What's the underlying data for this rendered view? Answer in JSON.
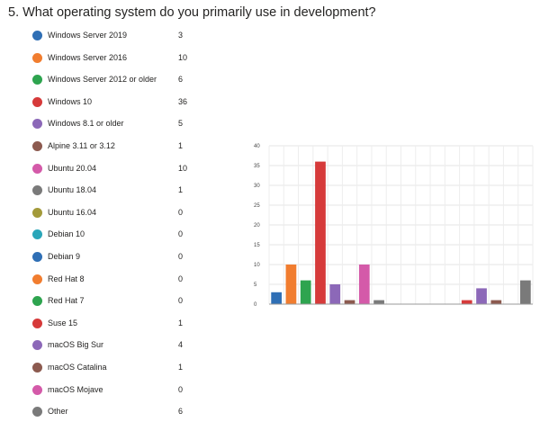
{
  "question": {
    "title": "5. What operating system do you primarily use in development?"
  },
  "chart_data": {
    "type": "bar",
    "categories": [
      "Windows Server 2019",
      "Windows Server 2016",
      "Windows Server 2012 or older",
      "Windows 10",
      "Windows 8.1 or older",
      "Alpine 3.11 or 3.12",
      "Ubuntu 20.04",
      "Ubuntu 18.04",
      "Ubuntu 16.04",
      "Debian 10",
      "Debian 9",
      "Red Hat 8",
      "Red Hat 7",
      "Suse 15",
      "macOS Big Sur",
      "macOS Catalina",
      "macOS Mojave",
      "Other"
    ],
    "values": [
      3,
      10,
      6,
      36,
      5,
      1,
      10,
      1,
      0,
      0,
      0,
      0,
      0,
      1,
      4,
      1,
      0,
      6
    ],
    "colors": [
      "#2f6fb5",
      "#f17d2f",
      "#2ea44f",
      "#d63a3a",
      "#8c68b8",
      "#8c5a4f",
      "#d45aa9",
      "#7a7a7a",
      "#a39a3a",
      "#2aa6b9",
      "#2f6fb5",
      "#f17d2f",
      "#2ea44f",
      "#d63a3a",
      "#8c68b8",
      "#8c5a4f",
      "#d45aa9",
      "#7a7a7a"
    ],
    "yticks": [
      "0",
      "5",
      "10",
      "15",
      "20",
      "25",
      "30",
      "35",
      "40"
    ],
    "ylim": [
      0,
      40
    ],
    "grid": true,
    "legend": "left"
  }
}
